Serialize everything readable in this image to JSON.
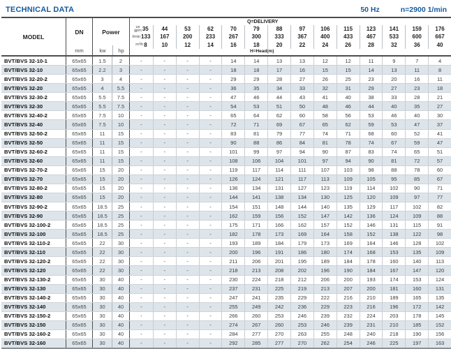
{
  "page": {
    "title": "TECHNICAL DATA",
    "frequency": "50 Hz",
    "speed": "n=2900 1/min"
  },
  "header": {
    "model": "MODEL",
    "dn": "DN",
    "dn_unit": "mm",
    "power": "Power",
    "kw": "kw",
    "hp": "hp",
    "delivery_label": "Q=DELIVERY",
    "head_label": "H=Head(m)",
    "unit_gpm_line1": "us",
    "unit_gpm_line2": "gpm",
    "unit_lmin": "l/min",
    "unit_m3h": "m³/h",
    "gpm": [
      35,
      44,
      53,
      62,
      70,
      79,
      88,
      97,
      106,
      115,
      123,
      141,
      159,
      176
    ],
    "lmin": [
      133,
      167,
      200,
      233,
      267,
      300,
      333,
      367,
      400,
      433,
      467,
      533,
      600,
      667
    ],
    "m3h": [
      8,
      10,
      12,
      14,
      16,
      18,
      20,
      22,
      24,
      26,
      28,
      32,
      36,
      40
    ]
  },
  "colors": {
    "accent_blue": "#155a9e",
    "row_shade": "#dde5eb"
  },
  "rows": [
    {
      "model": "BVT/BVS 32-10-1",
      "dn": "65x65",
      "kw": "1.5",
      "hp": "2",
      "head": [
        "-",
        "-",
        "-",
        "-",
        "14",
        "14",
        "13",
        "13",
        "12",
        "12",
        "11",
        "9",
        "7",
        "4"
      ]
    },
    {
      "model": "BVT/BVS 32-10",
      "dn": "65x65",
      "kw": "2.2",
      "hp": "3",
      "head": [
        "-",
        "-",
        "-",
        "-",
        "18",
        "18",
        "17",
        "16",
        "15",
        "15",
        "14",
        "13",
        "11",
        "8"
      ]
    },
    {
      "model": "BVT/BVS 32-20-2",
      "dn": "65x65",
      "kw": "3",
      "hp": "4",
      "head": [
        "-",
        "-",
        "-",
        "-",
        "29",
        "29",
        "28",
        "27",
        "26",
        "25",
        "23",
        "20",
        "16",
        "11"
      ]
    },
    {
      "model": "BVT/BVS 32-20",
      "dn": "65x65",
      "kw": "4",
      "hp": "5.5",
      "head": [
        "-",
        "-",
        "-",
        "-",
        "36",
        "35",
        "34",
        "33",
        "32",
        "31",
        "29",
        "27",
        "23",
        "18"
      ]
    },
    {
      "model": "BVT/BVS 32-30-2",
      "dn": "65x65",
      "kw": "5.5",
      "hp": "7.5",
      "head": [
        "-",
        "-",
        "-",
        "-",
        "47",
        "46",
        "44",
        "43",
        "41",
        "40",
        "38",
        "33",
        "28",
        "21"
      ]
    },
    {
      "model": "BVT/BVS 32-30",
      "dn": "65x65",
      "kw": "5.5",
      "hp": "7.5",
      "head": [
        "-",
        "-",
        "-",
        "-",
        "54",
        "53",
        "51",
        "50",
        "48",
        "46",
        "44",
        "40",
        "35",
        "27"
      ]
    },
    {
      "model": "BVT/BVS 32-40-2",
      "dn": "65x65",
      "kw": "7.5",
      "hp": "10",
      "head": [
        "-",
        "-",
        "-",
        "-",
        "65",
        "64",
        "62",
        "60",
        "58",
        "56",
        "53",
        "46",
        "40",
        "30"
      ]
    },
    {
      "model": "BVT/BVS 32-40",
      "dn": "65x65",
      "kw": "7.5",
      "hp": "10",
      "head": [
        "-",
        "-",
        "-",
        "-",
        "72",
        "71",
        "69",
        "67",
        "65",
        "62",
        "59",
        "53",
        "47",
        "37"
      ]
    },
    {
      "model": "BVT/BVS 32-50-2",
      "dn": "65x65",
      "kw": "11",
      "hp": "15",
      "head": [
        "-",
        "-",
        "-",
        "-",
        "83",
        "81",
        "79",
        "77",
        "74",
        "71",
        "68",
        "60",
        "52",
        "41"
      ]
    },
    {
      "model": "BVT/BVS 32-50",
      "dn": "65x65",
      "kw": "11",
      "hp": "15",
      "head": [
        "-",
        "-",
        "-",
        "-",
        "90",
        "88",
        "86",
        "84",
        "81",
        "78",
        "74",
        "67",
        "59",
        "47"
      ]
    },
    {
      "model": "BVT/BVS 32-60-2",
      "dn": "65x65",
      "kw": "11",
      "hp": "15",
      "head": [
        "-",
        "-",
        "-",
        "-",
        "101",
        "99",
        "97",
        "94",
        "90",
        "87",
        "83",
        "74",
        "65",
        "51"
      ]
    },
    {
      "model": "BVT/BVS 32-60",
      "dn": "65x65",
      "kw": "11",
      "hp": "15",
      "head": [
        "-",
        "-",
        "-",
        "-",
        "108",
        "106",
        "104",
        "101",
        "97",
        "94",
        "90",
        "81",
        "72",
        "57"
      ]
    },
    {
      "model": "BVT/BVS 32-70-2",
      "dn": "65x65",
      "kw": "15",
      "hp": "20",
      "head": [
        "-",
        "-",
        "-",
        "-",
        "119",
        "117",
        "114",
        "111",
        "107",
        "103",
        "98",
        "88",
        "78",
        "60"
      ]
    },
    {
      "model": "BVT/BVS 32-70",
      "dn": "65x65",
      "kw": "15",
      "hp": "20",
      "head": [
        "-",
        "-",
        "-",
        "-",
        "126",
        "124",
        "121",
        "117",
        "113",
        "109",
        "105",
        "95",
        "85",
        "67"
      ]
    },
    {
      "model": "BVT/BVS 32-80-2",
      "dn": "65x65",
      "kw": "15",
      "hp": "20",
      "head": [
        "-",
        "-",
        "-",
        "-",
        "136",
        "134",
        "131",
        "127",
        "123",
        "119",
        "114",
        "102",
        "90",
        "71"
      ]
    },
    {
      "model": "BVT/BVS 32-80",
      "dn": "65x65",
      "kw": "15",
      "hp": "20",
      "head": [
        "-",
        "-",
        "-",
        "-",
        "144",
        "141",
        "138",
        "134",
        "130",
        "125",
        "120",
        "109",
        "97",
        "77"
      ]
    },
    {
      "model": "BVT/BVS 32-90-2",
      "dn": "65x65",
      "kw": "18.5",
      "hp": "25",
      "head": [
        "-",
        "-",
        "-",
        "-",
        "154",
        "151",
        "148",
        "144",
        "140",
        "135",
        "129",
        "117",
        "102",
        "82"
      ]
    },
    {
      "model": "BVT/BVS 32-90",
      "dn": "65x65",
      "kw": "18.5",
      "hp": "25",
      "head": [
        "-",
        "-",
        "-",
        "-",
        "162",
        "159",
        "156",
        "152",
        "147",
        "142",
        "136",
        "124",
        "109",
        "88"
      ]
    },
    {
      "model": "BVT/BVS 32-100-2",
      "dn": "65x65",
      "kw": "18.5",
      "hp": "25",
      "head": [
        "-",
        "-",
        "-",
        "-",
        "175",
        "171",
        "166",
        "162",
        "157",
        "152",
        "146",
        "131",
        "115",
        "91"
      ]
    },
    {
      "model": "BVT/BVS 32-100",
      "dn": "65x65",
      "kw": "18.5",
      "hp": "25",
      "head": [
        "-",
        "-",
        "-",
        "-",
        "182",
        "178",
        "173",
        "169",
        "164",
        "158",
        "152",
        "138",
        "122",
        "98"
      ]
    },
    {
      "model": "BVT/BVS 32-110-2",
      "dn": "65x65",
      "kw": "22",
      "hp": "30",
      "head": [
        "-",
        "-",
        "-",
        "-",
        "193",
        "189",
        "184",
        "179",
        "173",
        "169",
        "164",
        "146",
        "128",
        "102"
      ]
    },
    {
      "model": "BVT/BVS 32-110",
      "dn": "65x65",
      "kw": "22",
      "hp": "30",
      "head": [
        "-",
        "-",
        "-",
        "-",
        "200",
        "196",
        "191",
        "186",
        "180",
        "174",
        "168",
        "153",
        "135",
        "109"
      ]
    },
    {
      "model": "BVT/BVS 32-120-2",
      "dn": "65x65",
      "kw": "22",
      "hp": "30",
      "head": [
        "-",
        "-",
        "-",
        "-",
        "211",
        "206",
        "201",
        "195",
        "189",
        "184",
        "178",
        "160",
        "140",
        "113"
      ]
    },
    {
      "model": "BVT/BVS 32-120",
      "dn": "65x65",
      "kw": "22",
      "hp": "30",
      "head": [
        "-",
        "-",
        "-",
        "-",
        "218",
        "213",
        "208",
        "202",
        "196",
        "190",
        "184",
        "167",
        "147",
        "120"
      ]
    },
    {
      "model": "BVT/BVS 32-130-2",
      "dn": "65x65",
      "kw": "30",
      "hp": "40",
      "head": [
        "-",
        "-",
        "-",
        "-",
        "230",
        "224",
        "218",
        "212",
        "206",
        "200",
        "193",
        "174",
        "153",
        "124"
      ]
    },
    {
      "model": "BVT/BVS 32-130",
      "dn": "65x65",
      "kw": "30",
      "hp": "40",
      "head": [
        "-",
        "-",
        "-",
        "-",
        "237",
        "231",
        "225",
        "219",
        "213",
        "207",
        "200",
        "181",
        "160",
        "131"
      ]
    },
    {
      "model": "BVT/BVS 32-140-2",
      "dn": "65x65",
      "kw": "30",
      "hp": "40",
      "head": [
        "-",
        "-",
        "-",
        "-",
        "247",
        "241",
        "235",
        "229",
        "222",
        "216",
        "210",
        "189",
        "165",
        "135"
      ]
    },
    {
      "model": "BVT/BVS 32-140",
      "dn": "65x65",
      "kw": "30",
      "hp": "40",
      "head": [
        "-",
        "-",
        "-",
        "-",
        "255",
        "249",
        "242",
        "236",
        "229",
        "223",
        "216",
        "196",
        "172",
        "142"
      ]
    },
    {
      "model": "BVT/BVS 32-150-2",
      "dn": "65x65",
      "kw": "30",
      "hp": "40",
      "head": [
        "-",
        "-",
        "-",
        "-",
        "266",
        "260",
        "253",
        "246",
        "239",
        "232",
        "224",
        "203",
        "178",
        "145"
      ]
    },
    {
      "model": "BVT/BVS 32-150",
      "dn": "65x65",
      "kw": "30",
      "hp": "40",
      "head": [
        "-",
        "-",
        "-",
        "-",
        "274",
        "267",
        "260",
        "253",
        "246",
        "239",
        "231",
        "210",
        "185",
        "152"
      ]
    },
    {
      "model": "BVT/BVS 32-160-2",
      "dn": "65x65",
      "kw": "30",
      "hp": "40",
      "head": [
        "-",
        "-",
        "-",
        "-",
        "284",
        "277",
        "270",
        "263",
        "255",
        "248",
        "240",
        "218",
        "190",
        "156"
      ]
    },
    {
      "model": "BVT/BVS 32-160",
      "dn": "65x65",
      "kw": "30",
      "hp": "40",
      "head": [
        "-",
        "-",
        "-",
        "-",
        "292",
        "285",
        "277",
        "270",
        "262",
        "254",
        "246",
        "225",
        "197",
        "163"
      ]
    }
  ]
}
